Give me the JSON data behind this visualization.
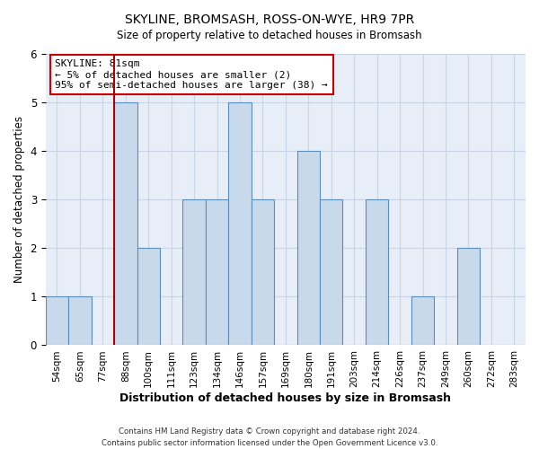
{
  "title": "SKYLINE, BROMSASH, ROSS-ON-WYE, HR9 7PR",
  "subtitle": "Size of property relative to detached houses in Bromsash",
  "xlabel": "Distribution of detached houses by size in Bromsash",
  "ylabel": "Number of detached properties",
  "bar_labels": [
    "54sqm",
    "65sqm",
    "77sqm",
    "88sqm",
    "100sqm",
    "111sqm",
    "123sqm",
    "134sqm",
    "146sqm",
    "157sqm",
    "169sqm",
    "180sqm",
    "191sqm",
    "203sqm",
    "214sqm",
    "226sqm",
    "237sqm",
    "249sqm",
    "260sqm",
    "272sqm",
    "283sqm"
  ],
  "bar_heights": [
    1,
    1,
    0,
    5,
    2,
    0,
    3,
    3,
    5,
    3,
    0,
    4,
    3,
    0,
    3,
    0,
    1,
    0,
    2,
    0,
    0
  ],
  "bar_color": "#c9d9ec",
  "bar_edge_color": "#5b8db8",
  "grid_color": "#c8d4e4",
  "background_color": "#e8eef8",
  "vline_x_idx": 2,
  "vline_color": "#aa0000",
  "annotation_text": "SKYLINE: 81sqm\n← 5% of detached houses are smaller (2)\n95% of semi-detached houses are larger (38) →",
  "annotation_box_color": "#cc0000",
  "footer_line1": "Contains HM Land Registry data © Crown copyright and database right 2024.",
  "footer_line2": "Contains public sector information licensed under the Open Government Licence v3.0.",
  "ylim": [
    0,
    6
  ],
  "yticks": [
    0,
    1,
    2,
    3,
    4,
    5,
    6
  ]
}
